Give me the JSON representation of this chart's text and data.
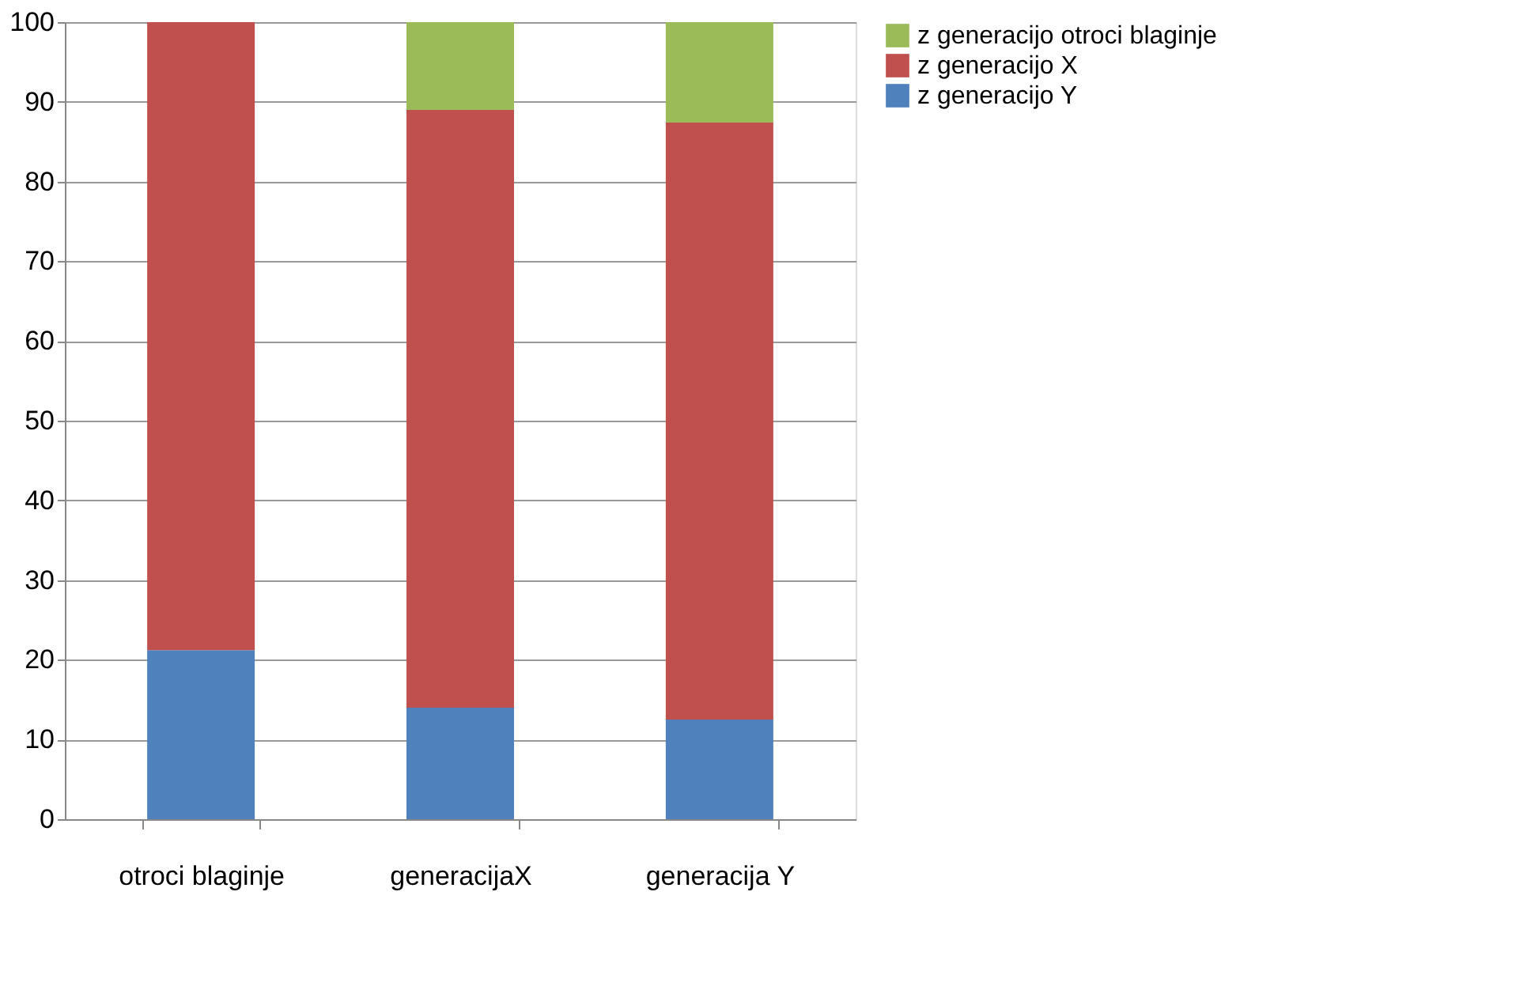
{
  "chart_data": {
    "type": "bar",
    "stacked": true,
    "categories": [
      "otroci blaginje",
      "generacijaX",
      "generacija Y"
    ],
    "series": [
      {
        "name": "z generacijo Y",
        "color": "#4f81bd",
        "values": [
          21.2,
          14.0,
          12.5
        ]
      },
      {
        "name": "z generacijo X",
        "color": "#c0504d",
        "values": [
          78.8,
          75.0,
          74.9
        ]
      },
      {
        "name": "z generacijo otroci blaginje",
        "color": "#9bbb59",
        "values": [
          0,
          11.0,
          12.6
        ]
      }
    ],
    "ylim": [
      0,
      100
    ],
    "yticks": [
      0,
      10,
      20,
      30,
      40,
      50,
      60,
      70,
      80,
      90,
      100
    ],
    "grid": "y",
    "legend": "right"
  }
}
